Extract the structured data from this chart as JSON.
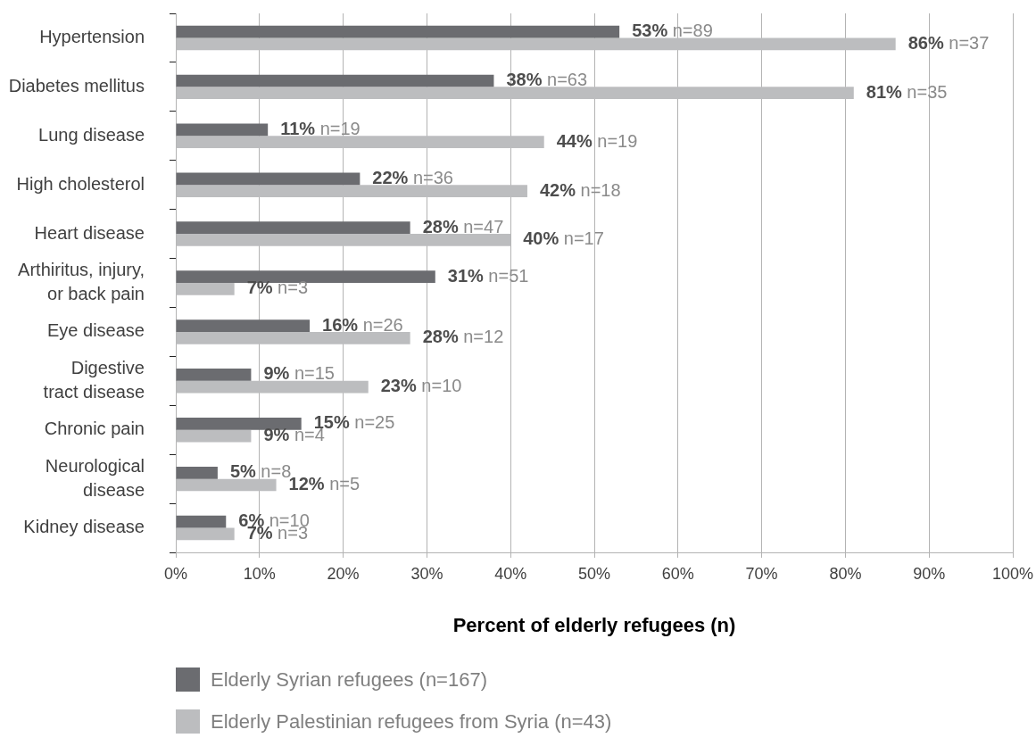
{
  "chart_data": {
    "type": "bar",
    "orientation": "horizontal",
    "categories": [
      "Hypertension",
      "Diabetes mellitus",
      "Lung disease",
      "High cholesterol",
      "Heart disease",
      "Arthiritus, injury, or back pain",
      "Eye disease",
      "Digestive tract disease",
      "Chronic pain",
      "Neurological disease",
      "Kidney disease"
    ],
    "series": [
      {
        "name": "Elderly Syrian refugees (n=167)",
        "color": "#6b6c70",
        "values": [
          53,
          38,
          11,
          22,
          28,
          31,
          16,
          9,
          15,
          5,
          6
        ],
        "value_labels": [
          "53% n=89",
          "38% n=63",
          "11% n=19",
          "22% n=36",
          "28% n=47",
          "31% n=51",
          "16% n=26",
          "9% n=15",
          "15% n=25",
          "5% n=8",
          "6% n=10"
        ]
      },
      {
        "name": "Elderly Palestinian refugees from Syria (n=43)",
        "color": "#bcbdbf",
        "values": [
          86,
          81,
          44,
          42,
          40,
          7,
          28,
          23,
          9,
          12,
          7
        ],
        "value_labels": [
          "86% n=37",
          "81% n=35",
          "44% n=19",
          "42% n=18",
          "40% n=17",
          "7% n=3",
          "28% n=12",
          "23% n=10",
          "9% n=4",
          "12% n=5",
          "7% n=3"
        ]
      }
    ],
    "xlabel": "Percent of elderly refugees (n)",
    "xlim": [
      0,
      100
    ],
    "xticks": [
      {
        "value": 0,
        "label": "0%"
      },
      {
        "value": 10,
        "label": "10%"
      },
      {
        "value": 20,
        "label": "20%"
      },
      {
        "value": 30,
        "label": "30%"
      },
      {
        "value": 40,
        "label": "40%"
      },
      {
        "value": 50,
        "label": "50%"
      },
      {
        "value": 60,
        "label": "60%"
      },
      {
        "value": 70,
        "label": "70%"
      },
      {
        "value": 80,
        "label": "80%"
      },
      {
        "value": 90,
        "label": "90%"
      },
      {
        "value": 100,
        "label": "100%"
      }
    ],
    "grid": "x",
    "legend": "bottom left"
  }
}
